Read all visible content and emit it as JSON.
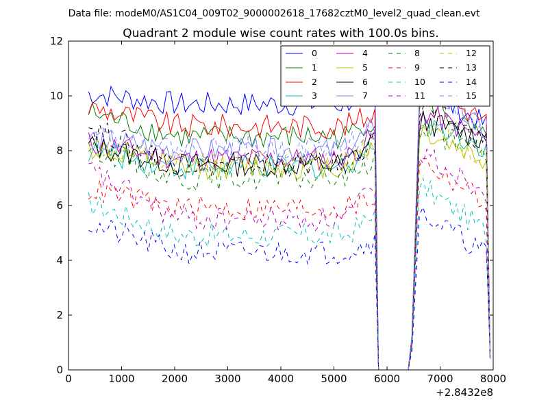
{
  "figure": {
    "suptitle": "Data file: modeM0/AS1C04_009T02_9000002618_17682cztM0_level2_quad_clean.evt"
  },
  "chart_data": {
    "type": "line",
    "title": "Quadrant 2 module wise count rates with 100.0s bins.",
    "xlabel": "",
    "ylabel": "",
    "xlim": [
      0,
      8000
    ],
    "ylim": [
      0,
      12
    ],
    "x_offset_label": "+2.8432e8",
    "x_ticks": [
      0,
      1000,
      2000,
      3000,
      4000,
      5000,
      6000,
      7000,
      8000
    ],
    "x_tick_labels": [
      "0",
      "1000",
      "2000",
      "3000",
      "4000",
      "5000",
      "6000",
      "7000",
      "8000"
    ],
    "y_ticks": [
      0,
      2,
      4,
      6,
      8,
      10,
      12
    ],
    "y_tick_labels": [
      "0",
      "2",
      "4",
      "6",
      "8",
      "10",
      "12"
    ],
    "legend_position": "top-right",
    "legend_columns": 4,
    "gap": {
      "start": 5780,
      "end": 6450
    },
    "series": [
      {
        "name": "0",
        "color": "#0000ff",
        "dash": "solid",
        "level": 9.7,
        "start": 10.1,
        "end": 8.9,
        "spike": 10.6,
        "peak2": 10.4
      },
      {
        "name": "1",
        "color": "#008000",
        "dash": "solid",
        "level": 8.5,
        "start": 9.4,
        "end": 8.3,
        "spike": 9.4,
        "peak2": 10.1
      },
      {
        "name": "2",
        "color": "#ff0000",
        "dash": "solid",
        "level": 8.9,
        "start": 9.6,
        "end": 9.1,
        "spike": 9.5,
        "peak2": 10.5
      },
      {
        "name": "3",
        "color": "#00bfbf",
        "dash": "solid",
        "level": 7.4,
        "start": 8.0,
        "end": 8.1,
        "spike": 8.6,
        "peak2": 9.3
      },
      {
        "name": "4",
        "color": "#bf00bf",
        "dash": "solid",
        "level": 7.7,
        "start": 8.3,
        "end": 8.4,
        "spike": 8.8,
        "peak2": 9.6
      },
      {
        "name": "5",
        "color": "#bfbf00",
        "dash": "solid",
        "level": 7.4,
        "start": 8.1,
        "end": 7.6,
        "spike": 8.5,
        "peak2": 8.9
      },
      {
        "name": "6",
        "color": "#000000",
        "dash": "solid",
        "level": 7.5,
        "start": 8.2,
        "end": 8.4,
        "spike": 8.7,
        "peak2": 9.2
      },
      {
        "name": "7",
        "color": "#7f7fff",
        "dash": "solid",
        "level": 8.0,
        "start": 8.5,
        "end": 8.6,
        "spike": 9.1,
        "peak2": 10.8
      },
      {
        "name": "8",
        "color": "#008000",
        "dash": "dashed",
        "level": 7.0,
        "start": 8.2,
        "end": 7.8,
        "spike": 8.0,
        "peak2": 9.0
      },
      {
        "name": "9",
        "color": "#ff0000",
        "dash": "dashed",
        "level": 5.9,
        "start": 6.6,
        "end": 6.1,
        "spike": 6.4,
        "peak2": 7.9
      },
      {
        "name": "10",
        "color": "#00bfbf",
        "dash": "dashed",
        "level": 4.9,
        "start": 6.1,
        "end": 5.0,
        "spike": 5.8,
        "peak2": 7.0
      },
      {
        "name": "11",
        "color": "#bf00bf",
        "dash": "dashed",
        "level": 5.5,
        "start": 7.3,
        "end": 6.5,
        "spike": 7.0,
        "peak2": 8.2
      },
      {
        "name": "12",
        "color": "#bfbf00",
        "dash": "dashed",
        "level": 7.6,
        "start": 8.1,
        "end": 7.6,
        "spike": 8.4,
        "peak2": 9.4
      },
      {
        "name": "13",
        "color": "#000000",
        "dash": "dashed",
        "level": 7.5,
        "start": 8.9,
        "end": 8.3,
        "spike": 8.7,
        "peak2": 9.8
      },
      {
        "name": "14",
        "color": "#0000ff",
        "dash": "dashed",
        "level": 4.3,
        "start": 5.3,
        "end": 4.2,
        "spike": 4.8,
        "peak2": 6.0
      },
      {
        "name": "15",
        "color": "#7f7fff",
        "dash": "dashed",
        "level": 8.1,
        "start": 8.6,
        "end": 9.0,
        "spike": 9.2,
        "peak2": 10.3
      }
    ]
  }
}
